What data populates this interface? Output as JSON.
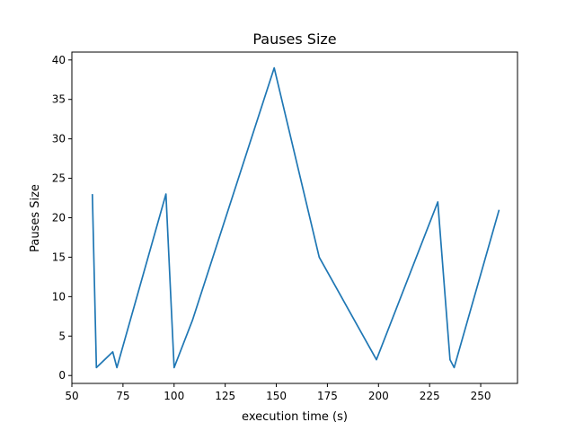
{
  "colors": {
    "line": "#1f77b4",
    "axes": "#000000",
    "background": "#ffffff"
  },
  "chart_data": {
    "type": "line",
    "title": "Pauses Size",
    "xlabel": "execution time (s)",
    "ylabel": "Pauses Size",
    "xlim": [
      50,
      268
    ],
    "ylim": [
      -1,
      41
    ],
    "xticks": [
      50,
      75,
      100,
      125,
      150,
      175,
      200,
      225,
      250
    ],
    "xtick_labels": [
      "50",
      "75",
      "100",
      "125",
      "150",
      "175",
      "200",
      "225",
      "250"
    ],
    "yticks": [
      0,
      5,
      10,
      15,
      20,
      25,
      30,
      35,
      40
    ],
    "ytick_labels": [
      "0",
      "5",
      "10",
      "15",
      "20",
      "25",
      "30",
      "35",
      "40"
    ],
    "grid": false,
    "series": [
      {
        "x": [
          60,
          62,
          70,
          72,
          96,
          100,
          109,
          149,
          171,
          199,
          229,
          235,
          237,
          259
        ],
        "y": [
          23,
          1,
          3,
          1,
          23,
          1,
          7,
          39,
          15,
          2,
          22,
          2,
          1,
          21
        ]
      }
    ]
  }
}
